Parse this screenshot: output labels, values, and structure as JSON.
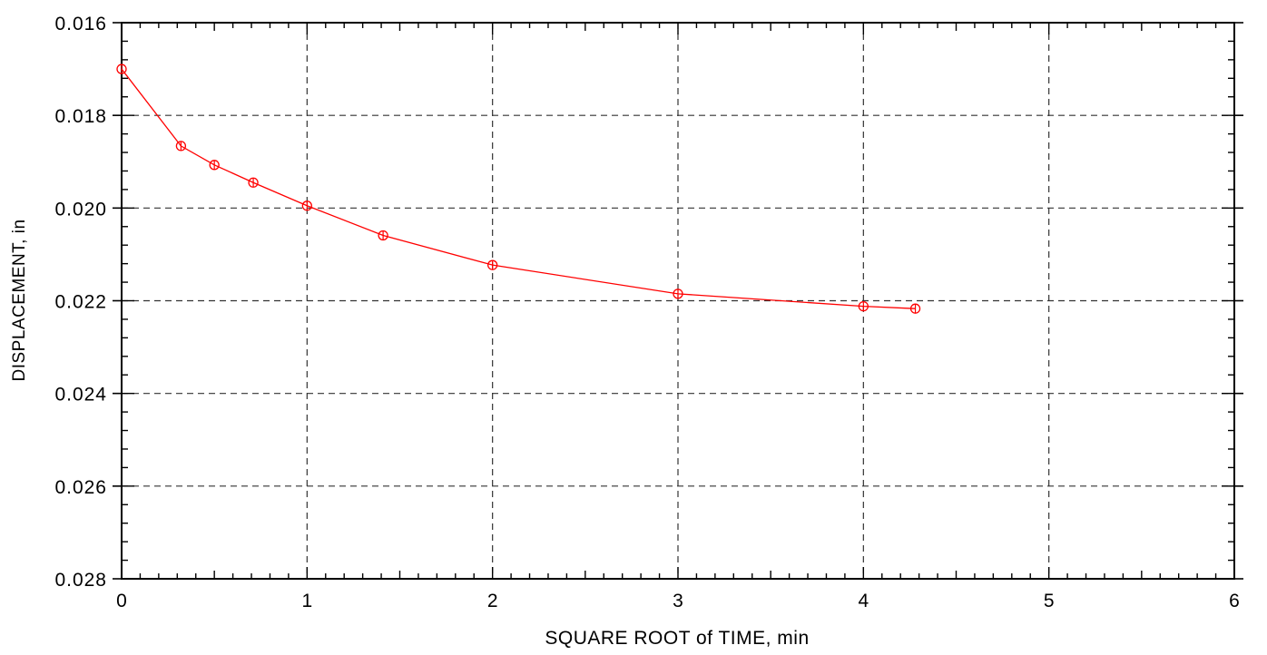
{
  "chart_data": {
    "type": "line",
    "title": "",
    "xlabel": "SQUARE ROOT of TIME, min",
    "ylabel": "DISPLACEMENT, in",
    "xlim": [
      0,
      6
    ],
    "ylim": [
      0.016,
      0.028
    ],
    "y_inverted": true,
    "x_ticks": [
      "0",
      "1",
      "2",
      "3",
      "4",
      "5",
      "6"
    ],
    "y_ticks": [
      "0.016",
      "0.018",
      "0.020",
      "0.022",
      "0.024",
      "0.026",
      "0.028"
    ],
    "grid": true,
    "grid_style": "dashed",
    "series": [
      {
        "color": "#ff0000",
        "marker": "circle",
        "x": [
          0,
          0.32,
          0.5,
          0.71,
          1.0,
          1.41,
          2.0,
          3.0,
          4.0,
          4.28
        ],
        "y": [
          0.017,
          0.01866,
          0.01907,
          0.01945,
          0.01995,
          0.02059,
          0.02123,
          0.02185,
          0.02212,
          0.02217
        ]
      }
    ]
  }
}
